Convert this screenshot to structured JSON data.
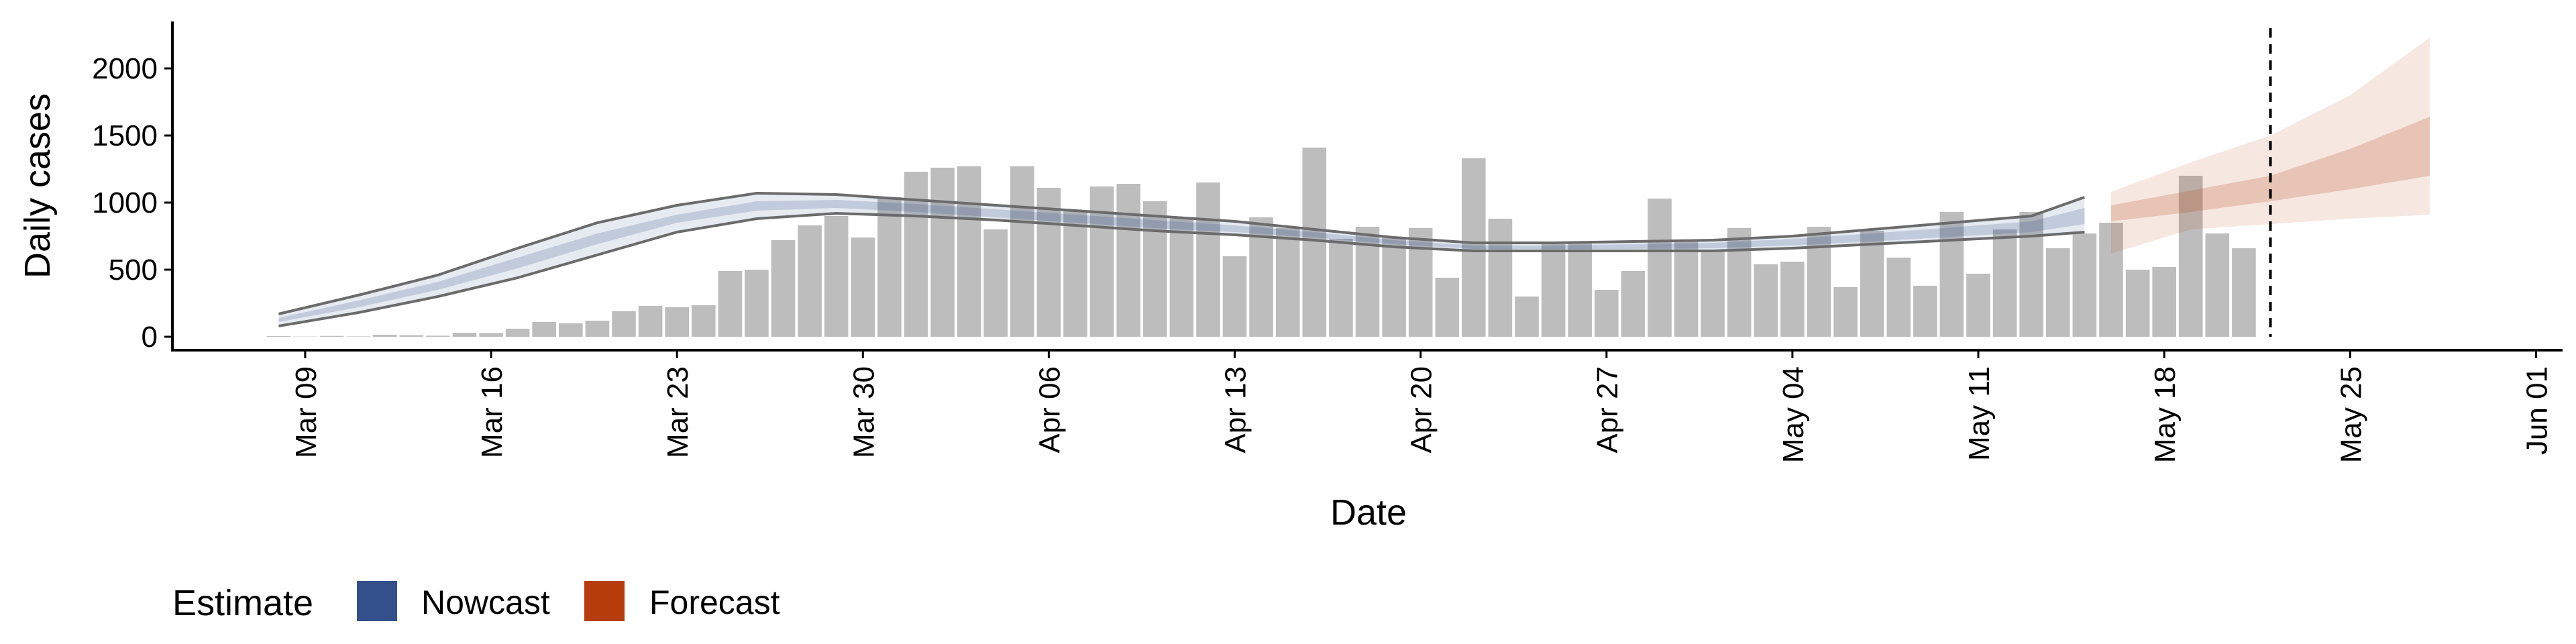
{
  "chart_data": {
    "type": "bar",
    "xlabel": "Date",
    "ylabel": "Daily cases",
    "y_ticks": [
      0,
      500,
      1000,
      1500,
      2000
    ],
    "ylim": [
      -100,
      2350
    ],
    "xlim": [
      "2020-03-04",
      "2020-06-02"
    ],
    "x_ticks": [
      "Mar 09",
      "Mar 16",
      "Mar 23",
      "Mar 30",
      "Apr 06",
      "Apr 13",
      "Apr 20",
      "Apr 27",
      "May 04",
      "May 11",
      "May 18",
      "May 25",
      "Jun 01"
    ],
    "x_tick_dates": [
      "2020-03-09",
      "2020-03-16",
      "2020-03-23",
      "2020-03-30",
      "2020-04-06",
      "2020-04-13",
      "2020-04-20",
      "2020-04-27",
      "2020-05-04",
      "2020-05-11",
      "2020-05-18",
      "2020-05-25",
      "2020-06-01"
    ],
    "grid": false,
    "bars": {
      "name": "Daily cases",
      "color": "#bdbdbd",
      "start_date": "2020-03-08",
      "values": [
        5,
        2,
        6,
        3,
        15,
        12,
        8,
        30,
        28,
        60,
        110,
        100,
        120,
        190,
        230,
        220,
        235,
        490,
        500,
        720,
        830,
        900,
        740,
        1040,
        1230,
        1260,
        1270,
        800,
        1270,
        1110,
        940,
        1120,
        1140,
        1010,
        880,
        1150,
        600,
        890,
        810,
        1410,
        730,
        820,
        740,
        810,
        440,
        1330,
        880,
        300,
        690,
        700,
        350,
        490,
        1030,
        720,
        650,
        810,
        540,
        560,
        820,
        370,
        790,
        590,
        380,
        930,
        470,
        800,
        930,
        660,
        770,
        850,
        500,
        520,
        1200,
        770,
        660
      ]
    },
    "nowcast": {
      "name": "Nowcast",
      "color": "#34508a",
      "dates": [
        "2020-03-08",
        "2020-03-11",
        "2020-03-14",
        "2020-03-17",
        "2020-03-20",
        "2020-03-23",
        "2020-03-26",
        "2020-03-29",
        "2020-04-01",
        "2020-04-04",
        "2020-04-07",
        "2020-04-10",
        "2020-04-13",
        "2020-04-16",
        "2020-04-19",
        "2020-04-22",
        "2020-04-25",
        "2020-04-28",
        "2020-05-01",
        "2020-05-04",
        "2020-05-07",
        "2020-05-10",
        "2020-05-13",
        "2020-05-15"
      ],
      "lower_90": [
        80,
        180,
        300,
        440,
        610,
        780,
        880,
        920,
        900,
        870,
        830,
        790,
        760,
        720,
        670,
        640,
        640,
        640,
        640,
        660,
        690,
        720,
        750,
        780
      ],
      "upper_90": [
        170,
        310,
        460,
        660,
        850,
        980,
        1070,
        1060,
        1020,
        980,
        940,
        900,
        860,
        800,
        740,
        700,
        700,
        710,
        720,
        750,
        800,
        850,
        900,
        1040
      ],
      "lower_50": [
        110,
        220,
        350,
        510,
        690,
        850,
        940,
        960,
        930,
        890,
        850,
        810,
        780,
        740,
        690,
        655,
        655,
        655,
        660,
        680,
        710,
        745,
        780,
        840
      ],
      "upper_50": [
        140,
        270,
        410,
        590,
        770,
        910,
        1010,
        1020,
        990,
        950,
        910,
        870,
        830,
        780,
        720,
        680,
        680,
        690,
        700,
        730,
        770,
        815,
        860,
        960
      ]
    },
    "forecast": {
      "name": "Forecast",
      "color": "#b63c0c",
      "dates": [
        "2020-05-16",
        "2020-05-19",
        "2020-05-22",
        "2020-05-25",
        "2020-05-28"
      ],
      "lower_90": [
        620,
        800,
        840,
        880,
        910
      ],
      "upper_90": [
        1080,
        1300,
        1500,
        1800,
        2230
      ],
      "lower_50": [
        860,
        930,
        1010,
        1100,
        1200
      ],
      "upper_50": [
        980,
        1090,
        1200,
        1400,
        1640
      ]
    },
    "vline_date": "2020-05-22",
    "legend": {
      "title": "Estimate",
      "position": "bottom-left",
      "items": [
        {
          "label": "Nowcast",
          "color": "#34508a"
        },
        {
          "label": "Forecast",
          "color": "#b63c0c"
        }
      ]
    }
  }
}
